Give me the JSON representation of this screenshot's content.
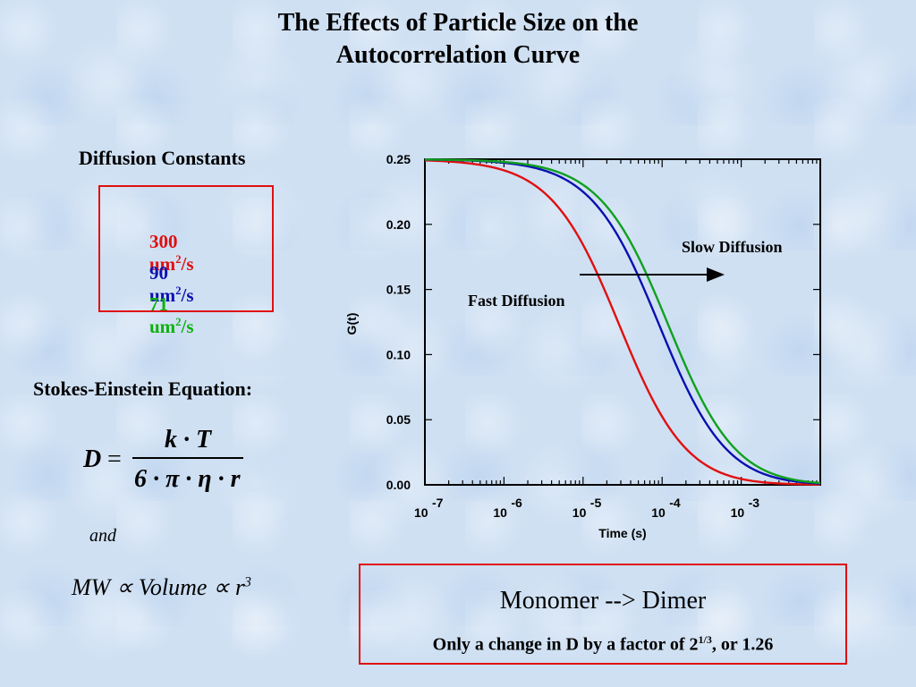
{
  "title_line1": "The Effects of Particle Size on the",
  "title_line2": "Autocorrelation Curve",
  "diffusion_heading": "Diffusion Constants",
  "diffusion_constants": [
    {
      "value": "300",
      "unit": "um",
      "exp": "2",
      "suffix": "/s",
      "color": "#e01010"
    },
    {
      "value": "90",
      "unit": "um",
      "exp": "2",
      "suffix": "/s",
      "color": "#0a10b0"
    },
    {
      "value": "71",
      "unit": "um",
      "exp": "2",
      "suffix": "/s",
      "color": "#10b010"
    }
  ],
  "stokes_heading": "Stokes-Einstein Equation:",
  "equation": {
    "lhs": "D",
    "eq": "=",
    "numerator": "k · T",
    "denominator": "6 · π · η · r"
  },
  "and_text": "and",
  "mw_relation": {
    "text": "MW ∝ Volume ∝ r",
    "exp": "3"
  },
  "monomer_box": {
    "title": "Monomer --> Dimer",
    "sub_prefix": "Only a change in D by a factor of 2",
    "sub_exp": "1/3",
    "sub_suffix": ", or 1.26"
  },
  "chart_data": {
    "type": "line",
    "xlabel": "Time (s)",
    "ylabel": "G(t)",
    "xscale": "log",
    "xlim": [
      1e-07,
      0.01
    ],
    "ylim": [
      0,
      0.25
    ],
    "yticks": [
      "0.00",
      "0.05",
      "0.10",
      "0.15",
      "0.20",
      "0.25"
    ],
    "xticks": [
      {
        "base": "10",
        "exp": "-7"
      },
      {
        "base": "10",
        "exp": "-6"
      },
      {
        "base": "10",
        "exp": "-5"
      },
      {
        "base": "10",
        "exp": "-4"
      },
      {
        "base": "10",
        "exp": "-3"
      }
    ],
    "series": [
      {
        "color": "#e01010",
        "g0": 0.25,
        "tau_half": 3.6e-05
      },
      {
        "color": "#0a10b0",
        "g0": 0.25,
        "tau_half": 0.000115
      },
      {
        "color": "#10a020",
        "g0": 0.25,
        "tau_half": 0.00015
      }
    ],
    "annotations": {
      "slow": "Slow Diffusion",
      "fast": "Fast Diffusion"
    }
  }
}
